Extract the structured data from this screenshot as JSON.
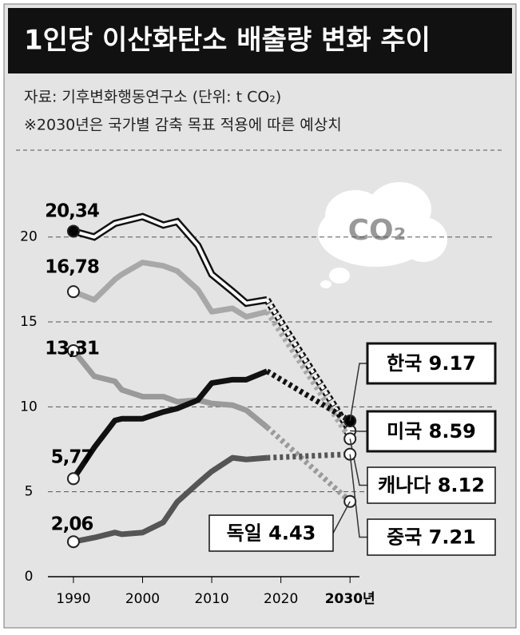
{
  "chart_data": {
    "type": "line",
    "title": "1인당 이산화탄소 배출량 변화 추이",
    "subtitle": "자료: 기후변화행동연구소 (단위: t CO₂)",
    "note": "※2030년은 국가별 감축 목표 적용에 따른 예상치",
    "annotation": "CO₂",
    "x": [
      1990,
      1993,
      1996,
      1997,
      2000,
      2003,
      2005,
      2008,
      2010,
      2013,
      2015,
      2018,
      2030
    ],
    "xlim": [
      1984,
      2051
    ],
    "xticks": [
      1990,
      2000,
      2010,
      2020,
      {
        "value": 2030,
        "label": "2030년"
      }
    ],
    "ylim": [
      0,
      24.5
    ],
    "yticks": [
      0,
      5,
      10,
      15,
      20
    ],
    "grid": true,
    "series": [
      {
        "name": "미국",
        "color": "#ffffff",
        "values": [
          20.34,
          20.0,
          20.8,
          20.9,
          21.2,
          20.7,
          20.9,
          19.5,
          17.8,
          16.8,
          16.1,
          16.3,
          8.59
        ],
        "value_labels": [
          "20,34",
          null,
          null,
          null,
          null,
          null,
          null,
          null,
          null,
          null,
          null,
          null,
          "8.59"
        ]
      },
      {
        "name": "캐나다",
        "color": "#a8a8a8",
        "values": [
          16.78,
          16.3,
          17.5,
          17.8,
          18.5,
          18.3,
          18.0,
          16.9,
          15.6,
          15.8,
          15.3,
          15.6,
          8.12
        ],
        "value_labels": [
          "16,78",
          null,
          null,
          null,
          null,
          null,
          null,
          null,
          null,
          null,
          null,
          null,
          "8.12"
        ]
      },
      {
        "name": "독일",
        "color": "#9a9a9a",
        "values": [
          13.31,
          11.8,
          11.5,
          11.0,
          10.6,
          10.6,
          10.3,
          10.4,
          10.2,
          10.1,
          9.8,
          8.8,
          4.43
        ],
        "value_labels": [
          "13,31",
          null,
          null,
          null,
          null,
          null,
          null,
          null,
          null,
          null,
          null,
          null,
          "4.43"
        ]
      },
      {
        "name": "한국",
        "color": "#111111",
        "values": [
          5.77,
          7.6,
          9.2,
          9.3,
          9.3,
          9.7,
          9.9,
          10.4,
          11.4,
          11.6,
          11.6,
          12.1,
          9.17
        ],
        "value_labels": [
          "5,77",
          null,
          null,
          null,
          null,
          null,
          null,
          null,
          null,
          null,
          null,
          null,
          "9.17"
        ]
      },
      {
        "name": "중국",
        "color": "#555555",
        "values": [
          2.06,
          2.3,
          2.6,
          2.5,
          2.6,
          3.2,
          4.4,
          5.5,
          6.2,
          7.0,
          6.9,
          7.0,
          7.21
        ],
        "value_labels": [
          "2,06",
          null,
          null,
          null,
          null,
          null,
          null,
          null,
          null,
          null,
          null,
          null,
          "7.21"
        ]
      }
    ]
  }
}
